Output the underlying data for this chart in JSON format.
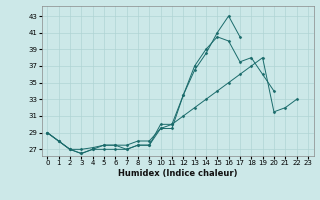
{
  "xlabel": "Humidex (Indice chaleur)",
  "background_color": "#cce8e8",
  "grid_color": "#b0d4d4",
  "line_color": "#1a6b6b",
  "x_ticks": [
    0,
    1,
    2,
    3,
    4,
    5,
    6,
    7,
    8,
    9,
    10,
    11,
    12,
    13,
    14,
    15,
    16,
    17,
    18,
    19,
    20,
    21,
    22,
    23
  ],
  "y_ticks": [
    27,
    29,
    31,
    33,
    35,
    37,
    39,
    41,
    43
  ],
  "ylim": [
    26.2,
    44.2
  ],
  "xlim": [
    -0.5,
    23.5
  ],
  "series": [
    [
      29.0,
      28.0,
      27.0,
      26.5,
      27.0,
      27.5,
      27.5,
      27.0,
      27.5,
      27.5,
      29.5,
      29.5,
      33.5,
      36.5,
      38.5,
      41.0,
      43.0,
      40.5,
      null,
      null,
      null,
      null,
      null,
      null
    ],
    [
      29.0,
      28.0,
      27.0,
      26.5,
      27.0,
      27.0,
      27.0,
      27.0,
      27.5,
      27.5,
      30.0,
      30.0,
      33.5,
      37.0,
      39.0,
      40.5,
      40.0,
      37.5,
      38.0,
      36.0,
      34.0,
      null,
      null,
      null
    ],
    [
      29.0,
      28.0,
      27.0,
      27.0,
      27.2,
      27.5,
      27.5,
      27.5,
      28.0,
      28.0,
      29.5,
      30.0,
      31.0,
      32.0,
      33.0,
      34.0,
      35.0,
      36.0,
      37.0,
      38.0,
      31.5,
      32.0,
      33.0,
      null
    ]
  ]
}
